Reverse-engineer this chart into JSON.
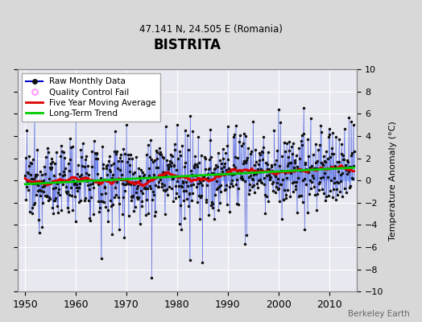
{
  "title": "BISTRITA",
  "subtitle": "47.141 N, 24.505 E (Romania)",
  "ylabel": "Temperature Anomaly (°C)",
  "xlim": [
    1948.5,
    2015.5
  ],
  "ylim": [
    -10,
    10
  ],
  "yticks": [
    -10,
    -8,
    -6,
    -4,
    -2,
    0,
    2,
    4,
    6,
    8,
    10
  ],
  "xticks": [
    1950,
    1960,
    1970,
    1980,
    1990,
    2000,
    2010
  ],
  "start_year": 1950,
  "end_year": 2014,
  "seed": 12345,
  "figure_color": "#d8d8d8",
  "plot_bg_color": "#e8e8f0",
  "grid_color": "#ffffff",
  "line_color": "#3333cc",
  "stem_color": "#6699ff",
  "dot_color": "#111111",
  "moving_avg_color": "#dd0000",
  "trend_color": "#00cc00",
  "annotation": "Berkeley Earth",
  "legend_items": [
    {
      "label": "Raw Monthly Data",
      "color": "#0000cc",
      "markercolor": "#111111"
    },
    {
      "label": "Quality Control Fail",
      "edgecolor": "#ff88ff"
    },
    {
      "label": "Five Year Moving Average",
      "color": "#dd0000"
    },
    {
      "label": "Long-Term Trend",
      "color": "#00cc00"
    }
  ]
}
